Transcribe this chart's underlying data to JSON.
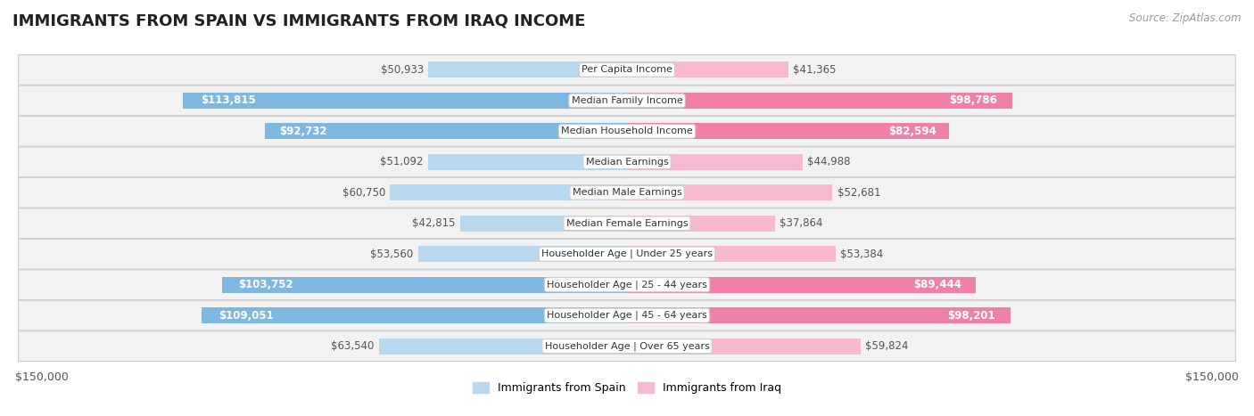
{
  "title": "IMMIGRANTS FROM SPAIN VS IMMIGRANTS FROM IRAQ INCOME",
  "source": "Source: ZipAtlas.com",
  "categories": [
    "Per Capita Income",
    "Median Family Income",
    "Median Household Income",
    "Median Earnings",
    "Median Male Earnings",
    "Median Female Earnings",
    "Householder Age | Under 25 years",
    "Householder Age | 25 - 44 years",
    "Householder Age | 45 - 64 years",
    "Householder Age | Over 65 years"
  ],
  "spain_values": [
    50933,
    113815,
    92732,
    51092,
    60750,
    42815,
    53560,
    103752,
    109051,
    63540
  ],
  "iraq_values": [
    41365,
    98786,
    82594,
    44988,
    52681,
    37864,
    53384,
    89444,
    98201,
    59824
  ],
  "spain_color": "#7eb8e0",
  "iraq_color": "#f080a8",
  "spain_color_light": "#b8d8f0",
  "iraq_color_light": "#f8b8d0",
  "spain_label_color_inner": "#ffffff",
  "iraq_label_color_inner": "#ffffff",
  "spain_label_color_outer": "#555555",
  "iraq_label_color_outer": "#555555",
  "max_value": 150000,
  "bar_height": 0.52,
  "background_color": "#ffffff",
  "title_fontsize": 13,
  "label_fontsize": 8.5,
  "category_fontsize": 8.0,
  "legend_fontsize": 9,
  "source_fontsize": 8.5,
  "spain_inner_threshold": 75000,
  "iraq_inner_threshold": 75000,
  "spain_bold_threshold": 75000,
  "iraq_bold_threshold": 75000
}
